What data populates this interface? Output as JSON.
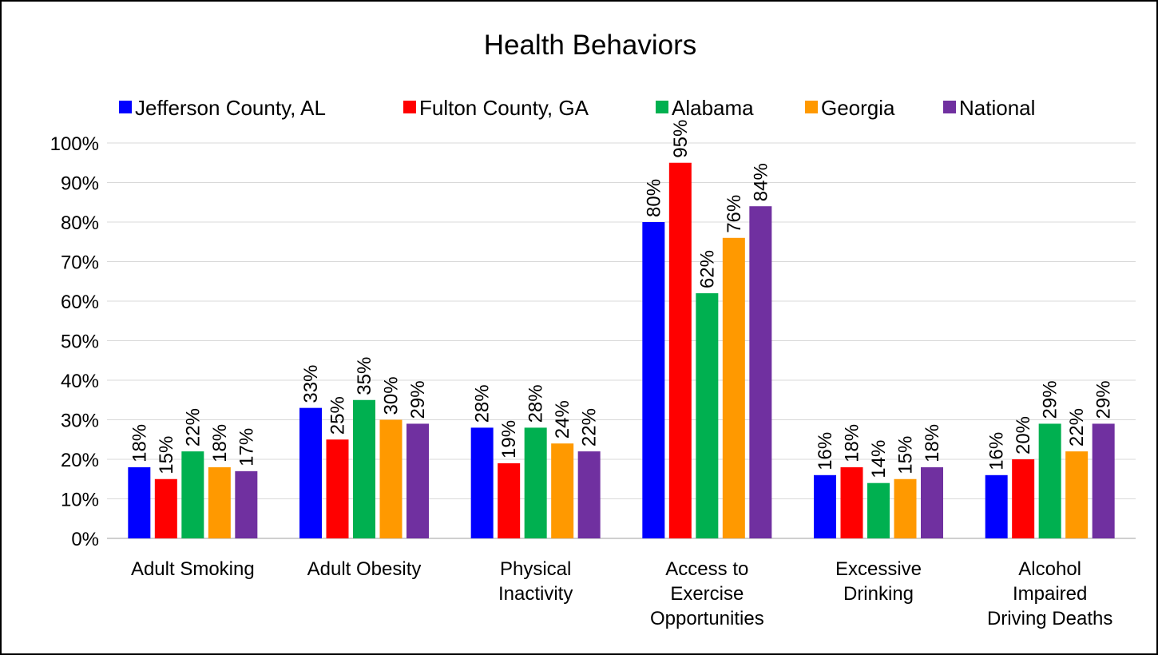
{
  "chart_data": {
    "type": "bar",
    "title": "Health Behaviors",
    "categories": [
      [
        "Adult Smoking"
      ],
      [
        "Adult Obesity"
      ],
      [
        "Physical",
        "Inactivity"
      ],
      [
        "Access to",
        "Exercise",
        "Opportunities"
      ],
      [
        "Excessive",
        "Drinking"
      ],
      [
        "Alcohol",
        "Impaired",
        "Driving Deaths"
      ]
    ],
    "series": [
      {
        "name": "Jefferson County, AL",
        "color": "#0000FF",
        "values": [
          18,
          33,
          28,
          80,
          16,
          16
        ]
      },
      {
        "name": "Fulton County, GA",
        "color": "#FF0000",
        "values": [
          15,
          25,
          19,
          95,
          18,
          20
        ]
      },
      {
        "name": "Alabama",
        "color": "#00B050",
        "values": [
          22,
          35,
          28,
          62,
          14,
          29
        ]
      },
      {
        "name": "Georgia",
        "color": "#FF9900",
        "values": [
          18,
          30,
          24,
          76,
          15,
          22
        ]
      },
      {
        "name": "National",
        "color": "#7030A0",
        "values": [
          17,
          29,
          22,
          84,
          18,
          29
        ]
      }
    ],
    "ylim": [
      0,
      100
    ],
    "yticks": [
      "0%",
      "10%",
      "20%",
      "30%",
      "40%",
      "50%",
      "60%",
      "70%",
      "80%",
      "90%",
      "100%"
    ],
    "value_suffix": "%",
    "grid": true,
    "legend_position": "top"
  }
}
